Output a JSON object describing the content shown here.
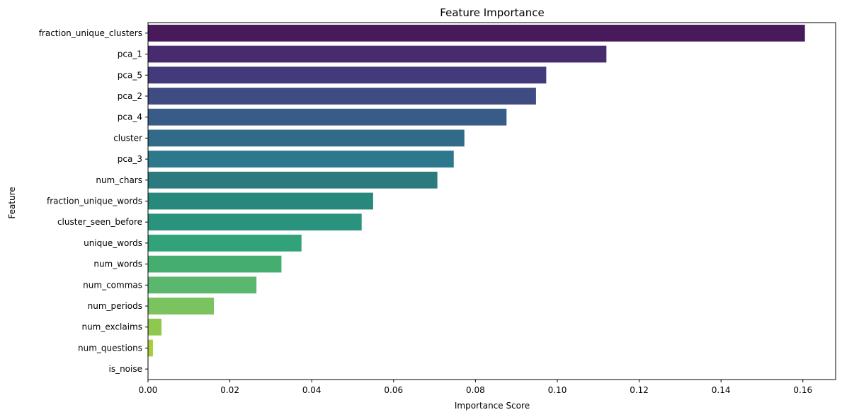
{
  "chart_data": {
    "type": "bar",
    "orientation": "horizontal",
    "title": "Feature Importance",
    "xlabel": "Importance Score",
    "ylabel": "Feature",
    "xlim": [
      0,
      0.168
    ],
    "xticks": [
      0.0,
      0.02,
      0.04,
      0.06,
      0.08,
      0.1,
      0.12,
      0.14,
      0.16
    ],
    "xtick_labels": [
      "0.00",
      "0.02",
      "0.04",
      "0.06",
      "0.08",
      "0.10",
      "0.12",
      "0.14",
      "0.16"
    ],
    "categories": [
      "fraction_unique_clusters",
      "pca_1",
      "pca_5",
      "pca_2",
      "pca_4",
      "cluster",
      "pca_3",
      "num_chars",
      "fraction_unique_words",
      "cluster_seen_before",
      "unique_words",
      "num_words",
      "num_commas",
      "num_periods",
      "num_exclaims",
      "num_questions",
      "is_noise"
    ],
    "values": [
      0.1605,
      0.112,
      0.0973,
      0.0948,
      0.0876,
      0.0773,
      0.0747,
      0.0707,
      0.055,
      0.0522,
      0.0375,
      0.0326,
      0.0265,
      0.0161,
      0.0033,
      0.0012,
      0.0
    ],
    "colors": [
      "#481a5b",
      "#482b6e",
      "#433a7b",
      "#3e4c82",
      "#385c87",
      "#326b89",
      "#2d788c",
      "#2a7a7e",
      "#29887c",
      "#2a937e",
      "#31a27a",
      "#45ad6f",
      "#5bb66e",
      "#7bc35f",
      "#8fc84e",
      "#a8cd3b",
      "#bfd82c"
    ],
    "grid": false,
    "legend": "none"
  }
}
